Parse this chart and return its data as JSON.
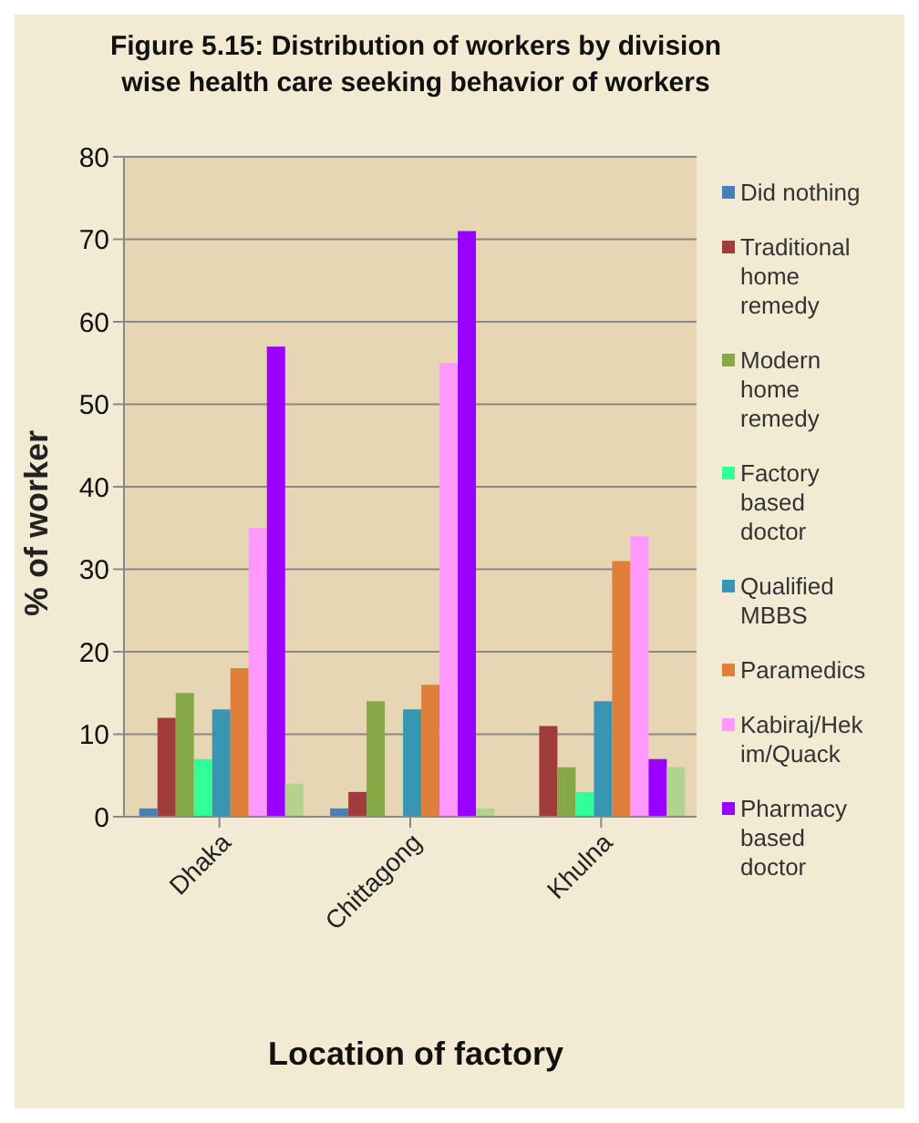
{
  "chart_data": {
    "type": "bar",
    "title": "Figure 5.15: Distribution of workers by division wise  health care seeking behavior of workers",
    "xlabel": "Location of factory",
    "ylabel": "% of worker",
    "categories": [
      "Dhaka",
      "Chittagong",
      "Khulna"
    ],
    "series": [
      {
        "name": "Did nothing",
        "color": "#4a7ebb",
        "values": [
          1,
          1,
          0
        ]
      },
      {
        "name": "Traditional home remedy",
        "color": "#a03c3c",
        "values": [
          12,
          3,
          11
        ]
      },
      {
        "name": "Modern home remedy",
        "color": "#86a846",
        "values": [
          15,
          14,
          6
        ]
      },
      {
        "name": "Factory based doctor",
        "color": "#33ff99",
        "values": [
          7,
          0,
          3
        ]
      },
      {
        "name": "Qualified MBBS",
        "color": "#3896b4",
        "values": [
          13,
          13,
          14
        ]
      },
      {
        "name": "Paramedics",
        "color": "#e07f3c",
        "values": [
          18,
          16,
          31
        ]
      },
      {
        "name": "Kabiraj/Hekim/Quack",
        "color": "#ff99ff",
        "values": [
          35,
          55,
          34
        ]
      },
      {
        "name": "Pharmacy based doctor",
        "color": "#9900ff",
        "values": [
          57,
          71,
          7
        ]
      },
      {
        "color": "#b3d18f",
        "values": [
          4,
          1,
          6
        ]
      }
    ],
    "ylim": [
      0,
      80
    ],
    "yticks": [
      0,
      10,
      20,
      30,
      40,
      50,
      60,
      70,
      80
    ],
    "grid": "y",
    "legend": "right"
  }
}
